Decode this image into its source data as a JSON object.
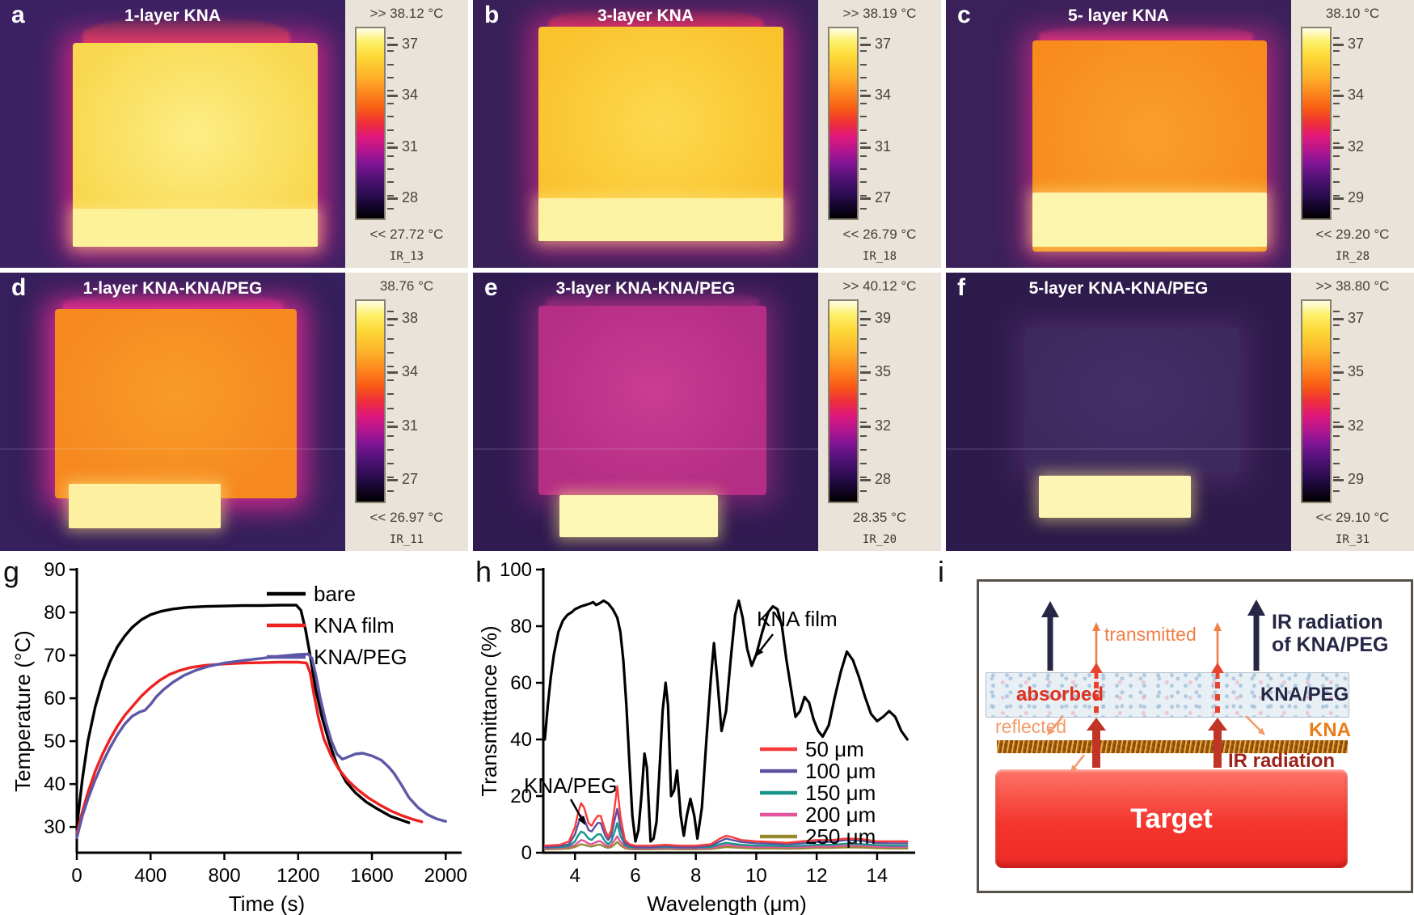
{
  "thermal_panels": [
    {
      "letter": "a",
      "title": "1-layer KNA",
      "scale_top": ">> 38.12 °C",
      "scale_bottom": "<< 27.72 °C",
      "ticks": [
        "37",
        "34",
        "31",
        "28"
      ],
      "ir_label": "IR_13",
      "colors": {
        "bg": "#3b2163",
        "square": "#f9d84f",
        "square_light": "#fcee86",
        "strip": "#fdf29a",
        "glow": "rgba(228,40,140,0.8)",
        "fringe": "#ff5f24"
      },
      "shape": {
        "sq": [
          21,
          16,
          71,
          76
        ],
        "strip": [
          21,
          78,
          71,
          14
        ],
        "fringe": [
          24,
          6,
          60,
          14
        ]
      }
    },
    {
      "letter": "b",
      "title": "3-layer KNA",
      "scale_top": ">> 38.19 °C",
      "scale_bottom": "<< 26.79 °C",
      "ticks": [
        "37",
        "34",
        "31",
        "27"
      ],
      "ir_label": "IR_18",
      "colors": {
        "bg": "#392059",
        "square": "#fac32e",
        "square_light": "#fcd94f",
        "strip": "#fdf2a2",
        "glow": "rgba(220,40,140,0.7)",
        "fringe": "#f8432a"
      },
      "shape": {
        "sq": [
          19,
          10,
          71,
          80
        ],
        "strip": [
          19,
          74,
          71,
          16
        ],
        "fringe": [
          22,
          3,
          62,
          10
        ]
      }
    },
    {
      "letter": "c",
      "title": "5- layer KNA",
      "scale_top": "38.10 °C",
      "scale_bottom": "<< 29.20 °C",
      "ticks": [
        "37",
        "34",
        "32",
        "29"
      ],
      "ir_label": "IR_28",
      "colors": {
        "bg": "#3a215a",
        "square": "#f78c1d",
        "square_light": "#fa9f2a",
        "strip": "#fdf5ab",
        "glow": "rgba(225,45,145,0.65)",
        "fringe": "#e83a6e"
      },
      "shape": {
        "sq": [
          25,
          15,
          68,
          79
        ],
        "strip": [
          25,
          72,
          68,
          20
        ],
        "fringe": [
          27,
          9,
          62,
          8
        ]
      }
    },
    {
      "letter": "d",
      "title": "1-layer KNA-KNA/PEG",
      "scale_top": "38.76 °C",
      "scale_bottom": "<< 26.97 °C",
      "ticks": [
        "38",
        "34",
        "31",
        "27"
      ],
      "ir_label": "IR_11",
      "colors": {
        "bg": "#351f5c",
        "square": "#f6891f",
        "square_light": "#f99b28",
        "strip": "#fdf0a0",
        "glow": "rgba(235,45,150,0.85)",
        "fringe": "#f0368a"
      },
      "shape": {
        "sq": [
          16,
          13,
          70,
          68
        ],
        "strip": [
          20,
          76,
          44,
          16
        ],
        "fringe": [
          18,
          7,
          64,
          9
        ]
      }
    },
    {
      "letter": "e",
      "title": "3-layer KNA-KNA/PEG",
      "scale_top": ">> 40.12 °C",
      "scale_bottom": "28.35 °C",
      "ticks": [
        "39",
        "35",
        "32",
        "28"
      ],
      "ir_label": "IR_20",
      "colors": {
        "bg": "#301b51",
        "square": "#b52e85",
        "square_light": "#c93d92",
        "strip": "#fdf7b6",
        "glow": "rgba(190,50,150,0.5)",
        "fringe": "#8a2a70"
      },
      "shape": {
        "sq": [
          19,
          12,
          66,
          68
        ],
        "strip": [
          25,
          80,
          46,
          15
        ],
        "fringe": [
          21,
          6,
          62,
          8
        ]
      }
    },
    {
      "letter": "f",
      "title": "5-layer KNA-KNA/PEG",
      "scale_top": ">> 38.80 °C",
      "scale_bottom": "<< 29.10 °C",
      "ticks": [
        "37",
        "35",
        "32",
        "29"
      ],
      "ir_label": "IR_31",
      "colors": {
        "bg": "#2d1c4b",
        "square": "#3c2a5e",
        "square_light": "#443068",
        "strip": "#fcf5b4",
        "glow": "rgba(120,60,140,0.35)",
        "fringe": "none"
      },
      "shape": {
        "sq": [
          23,
          20,
          62,
          52
        ],
        "strip": [
          27,
          73,
          44,
          15
        ],
        "fringe": null
      }
    }
  ],
  "chart_data": [
    {
      "type": "line",
      "panel": "g",
      "xlabel": "Time (s)",
      "ylabel": "Temperature (°C)",
      "xlim": [
        0,
        2060
      ],
      "ylim": [
        24,
        90
      ],
      "xticks": [
        0,
        400,
        800,
        1200,
        1600,
        2000
      ],
      "yticks": [
        30,
        40,
        50,
        60,
        70,
        80,
        90
      ],
      "grid": false,
      "legend_position": "top-right",
      "series": [
        {
          "name": "bare",
          "color": "#000000",
          "x": [
            0,
            30,
            60,
            100,
            140,
            180,
            220,
            260,
            300,
            350,
            400,
            460,
            520,
            600,
            700,
            800,
            900,
            1000,
            1100,
            1190,
            1215,
            1240,
            1265,
            1295,
            1330,
            1370,
            1410,
            1460,
            1510,
            1570,
            1630,
            1700,
            1800
          ],
          "y": [
            30,
            41,
            50,
            58,
            64,
            68.5,
            72,
            74.5,
            76.5,
            78.3,
            79.5,
            80.3,
            80.8,
            81.2,
            81.4,
            81.5,
            81.6,
            81.6,
            81.7,
            81.7,
            80.5,
            76,
            70,
            62,
            55.5,
            49.5,
            44.5,
            40.5,
            38,
            35.8,
            34.2,
            32.5,
            31
          ]
        },
        {
          "name": "KNA film",
          "color": "#ee2020",
          "x": [
            0,
            30,
            60,
            100,
            140,
            180,
            220,
            260,
            300,
            350,
            400,
            450,
            500,
            560,
            620,
            700,
            800,
            900,
            1000,
            1100,
            1200,
            1245,
            1265,
            1285,
            1310,
            1340,
            1380,
            1420,
            1470,
            1520,
            1580,
            1640,
            1700,
            1760,
            1820,
            1870
          ],
          "y": [
            28.5,
            33.5,
            38,
            43,
            47,
            50.5,
            53.5,
            56,
            58,
            60.5,
            62.5,
            64.2,
            65.5,
            66.5,
            67.2,
            67.7,
            68,
            68.2,
            68.3,
            68.4,
            68.4,
            68.2,
            66,
            61,
            55.5,
            50.5,
            46.5,
            43.5,
            40.8,
            38.8,
            36.8,
            35.2,
            33.8,
            32.7,
            31.8,
            31.2
          ]
        },
        {
          "name": "KNA/PEG",
          "color": "#5d57a6",
          "x": [
            0,
            30,
            60,
            100,
            140,
            180,
            220,
            260,
            300,
            340,
            370,
            400,
            430,
            470,
            520,
            580,
            650,
            720,
            800,
            900,
            1000,
            1100,
            1200,
            1255,
            1275,
            1295,
            1320,
            1350,
            1380,
            1410,
            1440,
            1470,
            1510,
            1550,
            1600,
            1650,
            1690,
            1720,
            1760,
            1800,
            1850,
            1900,
            1950,
            2000
          ],
          "y": [
            27.5,
            32.5,
            36.5,
            41,
            45,
            48.5,
            51.5,
            54,
            55.8,
            56.8,
            57.2,
            58.6,
            60.3,
            62,
            63.7,
            65.3,
            66.6,
            67.5,
            68.2,
            68.8,
            69.3,
            69.8,
            70.2,
            70.3,
            69.3,
            65.5,
            60,
            54.5,
            50,
            47,
            45.8,
            46.3,
            47,
            47.2,
            46.6,
            45.6,
            44,
            42.5,
            39.8,
            36.9,
            34.5,
            32.9,
            31.9,
            31.3
          ]
        }
      ]
    },
    {
      "type": "line",
      "panel": "h",
      "xlabel": "Wavelength (μm)",
      "ylabel": "Transmittance (%)",
      "xlim": [
        2.95,
        15.1
      ],
      "ylim": [
        0,
        100
      ],
      "xticks": [
        4,
        6,
        8,
        10,
        12,
        14
      ],
      "yticks": [
        0,
        20,
        40,
        60,
        80,
        100
      ],
      "grid": false,
      "legend_position": "right",
      "annotations": [
        {
          "text": "KNA film"
        },
        {
          "text": "KNA/PEG"
        }
      ],
      "x_shared": [
        3,
        3.5,
        3.8,
        4.0,
        4.1,
        4.2,
        4.3,
        4.45,
        4.55,
        4.65,
        4.75,
        4.85,
        5.0,
        5.1,
        5.2,
        5.3,
        5.4,
        5.5,
        5.65,
        5.8,
        6.0,
        6.5,
        7.0,
        7.5,
        8.0,
        8.5,
        8.8,
        9.0,
        9.2,
        9.5,
        10,
        10.5,
        11,
        11.5,
        12,
        12.5,
        13,
        13.5,
        14,
        14.5,
        15
      ],
      "series": [
        {
          "name": "KNA film",
          "color": "#000000",
          "in_legend": false,
          "x": [
            3.0,
            3.1,
            3.2,
            3.3,
            3.45,
            3.6,
            3.75,
            3.9,
            4.0,
            4.1,
            4.2,
            4.35,
            4.5,
            4.6,
            4.7,
            4.8,
            4.95,
            5.1,
            5.25,
            5.4,
            5.5,
            5.6,
            5.7,
            5.8,
            5.9,
            6.0,
            6.1,
            6.2,
            6.3,
            6.38,
            6.5,
            6.6,
            6.7,
            6.8,
            6.9,
            7.0,
            7.08,
            7.18,
            7.28,
            7.38,
            7.5,
            7.6,
            7.7,
            7.82,
            7.95,
            8.05,
            8.2,
            8.35,
            8.5,
            8.6,
            8.72,
            8.85,
            9.0,
            9.15,
            9.3,
            9.42,
            9.55,
            9.7,
            9.85,
            10.0,
            10.2,
            10.4,
            10.55,
            10.7,
            10.85,
            11.0,
            11.15,
            11.3,
            11.45,
            11.6,
            11.75,
            11.9,
            12.05,
            12.2,
            12.4,
            12.6,
            12.8,
            13.0,
            13.2,
            13.4,
            13.6,
            13.8,
            14.0,
            14.2,
            14.4,
            14.6,
            14.8,
            15.0
          ],
          "y": [
            40,
            52,
            62,
            70,
            78,
            82,
            84,
            85,
            86,
            86.5,
            87,
            87.5,
            88,
            88.5,
            87.5,
            88,
            89,
            88,
            86,
            83,
            78,
            68,
            52,
            32,
            13,
            4,
            8,
            20,
            35,
            30,
            4,
            5,
            11,
            30,
            50,
            60,
            52,
            20,
            22,
            29,
            13,
            6,
            13,
            19,
            13,
            5,
            16,
            40,
            62,
            74,
            60,
            43,
            50,
            68,
            84,
            89,
            83,
            72,
            66,
            70,
            78,
            85,
            87,
            86,
            80,
            68,
            58,
            48,
            50,
            55,
            53,
            47,
            43,
            41,
            45,
            55,
            64,
            71,
            68,
            62,
            55,
            49,
            46.5,
            48,
            50,
            48,
            43,
            40
          ]
        },
        {
          "name": "250 μm",
          "color": "#97892e",
          "y": [
            1.2,
            1.3,
            1.5,
            2,
            2.5,
            3,
            2.8,
            2.3,
            2.2,
            2.5,
            2.8,
            2.8,
            2,
            1.7,
            2,
            2.8,
            3.8,
            2.6,
            1.6,
            1.3,
            1.2,
            1.2,
            1.3,
            1.2,
            1.2,
            1.3,
            1.7,
            2,
            1.9,
            1.7,
            1.5,
            1.5,
            1.4,
            1.5,
            1.7,
            1.7,
            1.9,
            1.8,
            1.6,
            1.5,
            1.5
          ]
        },
        {
          "name": "200 μm",
          "color": "#e1549c",
          "y": [
            1.5,
            1.7,
            2,
            2.7,
            3.6,
            4.5,
            4.2,
            3.2,
            3,
            3.5,
            4,
            4,
            2.8,
            2.2,
            2.8,
            4.2,
            5.8,
            3.8,
            2.2,
            1.7,
            1.5,
            1.5,
            1.7,
            1.5,
            1.5,
            1.7,
            2.3,
            2.7,
            2.5,
            2.2,
            2,
            2,
            1.9,
            2,
            2.2,
            2.2,
            2.5,
            2.4,
            2.1,
            2,
            2
          ]
        },
        {
          "name": "150 μm",
          "color": "#18948a",
          "y": [
            1.8,
            2,
            2.3,
            4,
            6,
            7.5,
            7,
            5,
            4.5,
            5.5,
            6.5,
            6.5,
            4,
            3,
            4,
            7,
            10.5,
            6,
            2.8,
            2,
            1.8,
            1.8,
            2,
            1.8,
            1.8,
            2,
            3,
            3.5,
            3.2,
            2.8,
            2.5,
            2.5,
            2.3,
            2.5,
            2.8,
            2.8,
            3.2,
            3,
            2.7,
            2.5,
            2.5
          ]
        },
        {
          "name": "100 μm",
          "color": "#5a50a0",
          "y": [
            2,
            2.3,
            3,
            6.5,
            10,
            13,
            12,
            8,
            7.5,
            9,
            10.5,
            10.5,
            6,
            4.5,
            6,
            11,
            15.5,
            9,
            3.5,
            2.5,
            2,
            2,
            2.3,
            2,
            2,
            2.5,
            4,
            5,
            4.5,
            3.8,
            3.3,
            3.2,
            3,
            3.3,
            3.8,
            3.8,
            4.5,
            4.2,
            3.5,
            3.3,
            3.3
          ]
        },
        {
          "name": "50 μm",
          "color": "#f83b3b",
          "y": [
            2.5,
            2.8,
            4,
            9,
            14,
            17.5,
            16,
            10.5,
            9.5,
            11.5,
            13,
            13,
            8,
            5.5,
            8,
            15,
            23.5,
            13,
            4.5,
            3,
            2.5,
            2.5,
            2.8,
            2.5,
            2.5,
            3,
            5,
            6,
            5.5,
            4.5,
            4,
            3.8,
            3.5,
            4,
            4.5,
            4.5,
            5,
            4.8,
            4,
            4,
            4
          ]
        }
      ],
      "legend_order": [
        "50 μm",
        "100 μm",
        "150 μm",
        "200 μm",
        "250 μm"
      ]
    }
  ],
  "schematic": {
    "letter": "i",
    "labels": {
      "transmitted": "transmitted",
      "ir_top_line1": "IR radiation",
      "ir_top_line2": "of KNA/PEG",
      "absorbed": "absorbed",
      "reflected": "reflected",
      "peg": "KNA/PEG",
      "kna": "KNA",
      "ir_bottom": "IR radiation",
      "target": "Target"
    },
    "colors": {
      "navy": "#262645",
      "orange": "#f08048",
      "light_orange": "#f49a6a",
      "red": "#e8432e",
      "dark_red": "#c03526",
      "ir_text_red": "#9c221c",
      "kna_label_orange": "#e87d18",
      "target_red": "#f4362e",
      "peg_strip": "#e9f0f5"
    }
  }
}
